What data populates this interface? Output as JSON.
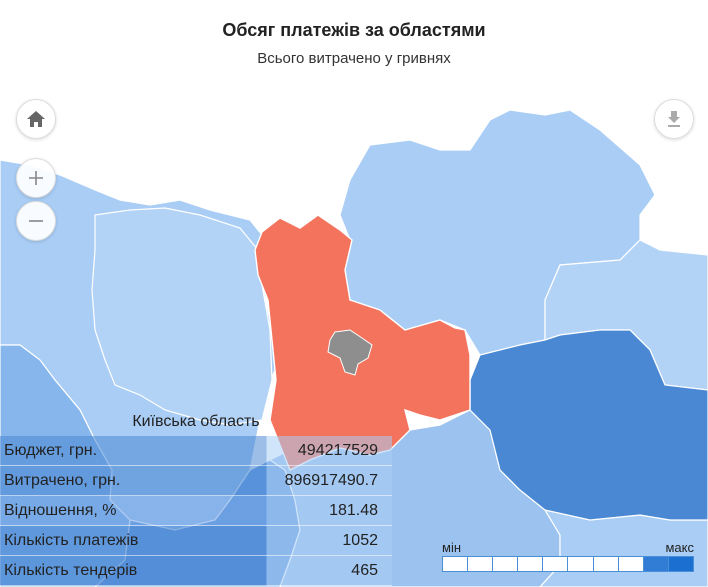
{
  "header": {
    "title": "Обсяг платежів за областями",
    "subtitle": "Всього витрачено у гривнях"
  },
  "controls": {
    "home_icon": "home-icon",
    "zoom_in_icon": "plus-icon",
    "zoom_out_icon": "minus-icon",
    "download_icon": "download-icon"
  },
  "tooltip": {
    "region": "Київська область",
    "rows": [
      {
        "label": "Бюджет, грн.",
        "value": "494217529"
      },
      {
        "label": "Витрачено, грн.",
        "value": "896917490.7"
      },
      {
        "label": "Відношення, %",
        "value": "181.48"
      },
      {
        "label": "Кількість платежів",
        "value": "1052"
      },
      {
        "label": "Кількість тендерів",
        "value": "465"
      }
    ]
  },
  "legend": {
    "min_label": "мін",
    "max_label": "макс",
    "steps": 10
  },
  "colors": {
    "highlight_region": "#f4735d",
    "city_kyiv": "#8e8e8e",
    "lightest": "#a9cdf5",
    "light": "#9cc3f0",
    "medium": "#6b9fe3",
    "dark": "#4a88d4",
    "legend_min": "#e8f1fc",
    "legend_max": "#1a6fd1"
  }
}
